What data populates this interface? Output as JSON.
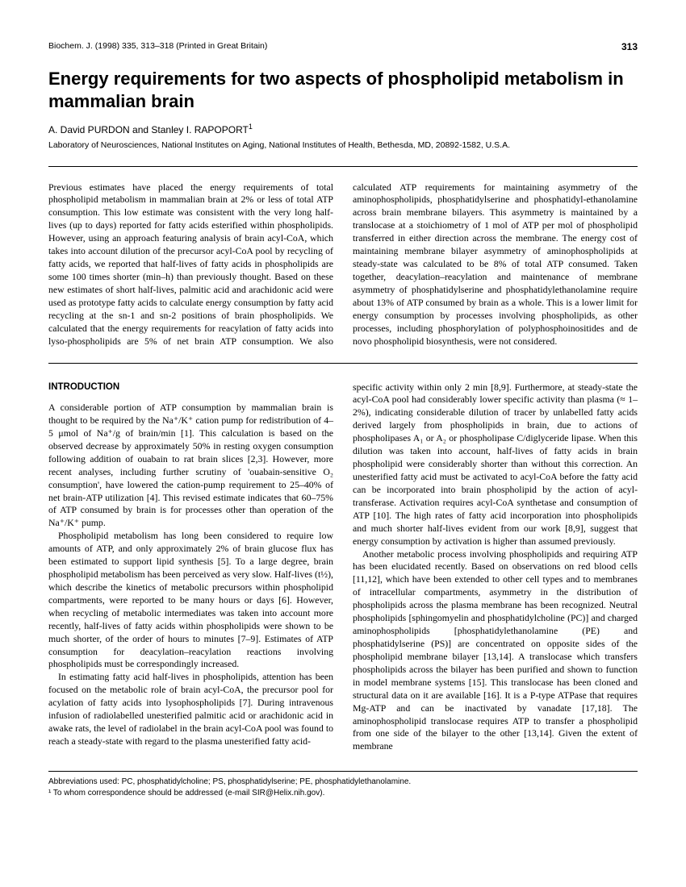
{
  "header": {
    "journal": "Biochem. J. (1998) 335, 313–318 (Printed in Great Britain)",
    "page": "313"
  },
  "title": "Energy requirements for two aspects of phospholipid metabolism in mammalian brain",
  "authors": "A. David PURDON and Stanley I. RAPOPORT¹",
  "affiliation": "Laboratory of Neurosciences, National Institutes on Aging, National Institutes of Health, Bethesda, MD, 20892-1582, U.S.A.",
  "abstract": {
    "col1": "Previous estimates have placed the energy requirements of total phospholipid metabolism in mammalian brain at 2% or less of total ATP consumption. This low estimate was consistent with the very long half-lives (up to days) reported for fatty acids esterified within phospholipids. However, using an approach featuring analysis of brain acyl-CoA, which takes into account dilution of the precursor acyl-CoA pool by recycling of fatty acids, we reported that half-lives of fatty acids in phospholipids are some 100 times shorter (min–h) than previously thought. Based on these new estimates of short half-lives, palmitic acid and arachidonic acid were used as prototype fatty acids to calculate energy consumption by fatty acid recycling at the sn-1 and sn-2 positions of brain phospholipids. We calculated that the energy requirements for reacylation of fatty acids into lyso-phospholipids are 5% of net brain ATP consumption. We also",
    "col2": "calculated ATP requirements for maintaining asymmetry of the aminophospholipids, phosphatidylserine and phosphatidyl-ethanolamine across brain membrane bilayers. This asymmetry is maintained by a translocase at a stoichiometry of 1 mol of ATP per mol of phospholipid transferred in either direction across the membrane. The energy cost of maintaining membrane bilayer asymmetry of aminophospholipids at steady-state was calculated to be 8% of total ATP consumed. Taken together, deacylation–reacylation and maintenance of membrane asymmetry of phosphatidylserine and phosphatidylethanolamine require about 13% of ATP consumed by brain as a whole. This is a lower limit for energy consumption by processes involving phospholipids, as other processes, including phosphorylation of polyphosphoinositides and de novo phospholipid biosynthesis, were not considered."
  },
  "body": {
    "section_heading": "INTRODUCTION",
    "p1": "A considerable portion of ATP consumption by mammalian brain is thought to be required by the Na⁺/K⁺ cation pump for redistribution of 4–5 μmol of Na⁺/g of brain/min [1]. This calculation is based on the observed decrease by approximately 50% in resting oxygen consumption following addition of ouabain to rat brain slices [2,3]. However, more recent analyses, including further scrutiny of 'ouabain-sensitive O₂ consumption', have lowered the cation-pump requirement to 25–40% of net brain-ATP utilization [4]. This revised estimate indicates that 60–75% of ATP consumed by brain is for processes other than operation of the Na⁺/K⁺ pump.",
    "p2": "Phospholipid metabolism has long been considered to require low amounts of ATP, and only approximately 2% of brain glucose flux has been estimated to support lipid synthesis [5]. To a large degree, brain phospholipid metabolism has been perceived as very slow. Half-lives (t½), which describe the kinetics of metabolic precursors within phospholipid compartments, were reported to be many hours or days [6]. However, when recycling of metabolic intermediates was taken into account more recently, half-lives of fatty acids within phospholipids were shown to be much shorter, of the order of hours to minutes [7–9]. Estimates of ATP consumption for deacylation–reacylation reactions involving phospholipids must be correspondingly increased.",
    "p3": "In estimating fatty acid half-lives in phospholipids, attention has been focused on the metabolic role of brain acyl-CoA, the precursor pool for acylation of fatty acids into lysophospholipids [7]. During intravenous infusion of radiolabelled unesterified palmitic acid or arachidonic acid in awake rats, the level of radiolabel in the brain acyl-CoA pool was found to reach a steady-state with regard to the plasma unesterified fatty acid-",
    "p4": "specific activity within only 2 min [8,9]. Furthermore, at steady-state the acyl-CoA pool had considerably lower specific activity than plasma (≈ 1–2%), indicating considerable dilution of tracer by unlabelled fatty acids derived largely from phospholipids in brain, due to actions of phospholipases A₁ or A₂ or phospholipase C/diglyceride lipase. When this dilution was taken into account, half-lives of fatty acids in brain phospholipid were considerably shorter than without this correction. An unesterified fatty acid must be activated to acyl-CoA before the fatty acid can be incorporated into brain phospholipid by the action of acyl-transferase. Activation requires acyl-CoA synthetase and consumption of ATP [10]. The high rates of fatty acid incorporation into phospholipids and much shorter half-lives evident from our work [8,9], suggest that energy consumption by activation is higher than assumed previously.",
    "p5": "Another metabolic process involving phospholipids and requiring ATP has been elucidated recently. Based on observations on red blood cells [11,12], which have been extended to other cell types and to membranes of intracellular compartments, asymmetry in the distribution of phospholipids across the plasma membrane has been recognized. Neutral phospholipids [sphingomyelin and phosphatidylcholine (PC)] and charged aminophospholipids [phosphatidylethanolamine (PE) and phosphatidylserine (PS)] are concentrated on opposite sides of the phospholipid membrane bilayer [13,14]. A translocase which transfers phospholipids across the bilayer has been purified and shown to function in model membrane systems [15]. This translocase has been cloned and structural data on it are available [16]. It is a P-type ATPase that requires Mg-ATP and can be inactivated by vanadate [17,18]. The aminophospholipid translocase requires ATP to transfer a phospholipid from one side of the bilayer to the other [13,14]. Given the extent of membrane"
  },
  "footnotes": {
    "abbr": "Abbreviations used: PC, phosphatidylcholine; PS, phosphatidylserine; PE, phosphatidylethanolamine.",
    "corr": "¹ To whom correspondence should be addressed (e-mail SIR@Helix.nih.gov)."
  },
  "style": {
    "title_fontsize": 22,
    "body_fontsize": 11.8,
    "column_gap": 24,
    "text_color": "#000000",
    "background": "#ffffff"
  }
}
